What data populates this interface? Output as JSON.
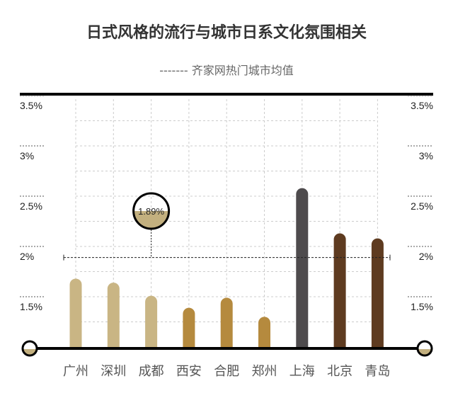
{
  "chart_data": {
    "type": "bar",
    "title": "日式风格的流行与城市日系文化氛围相关",
    "legend": "------- 齐家网热门城市均值",
    "categories": [
      "广州",
      "深圳",
      "成都",
      "西安",
      "合肥",
      "郑州",
      "上海",
      "北京",
      "青岛"
    ],
    "values": [
      1.68,
      1.64,
      1.51,
      1.39,
      1.49,
      1.3,
      2.58,
      2.13,
      2.08
    ],
    "colors": [
      "#c9b584",
      "#c9b584",
      "#c9b584",
      "#b58a3e",
      "#b58a3e",
      "#b58a3e",
      "#4e4b4d",
      "#5e3b20",
      "#5e3b20"
    ],
    "average": {
      "value": 1.89,
      "label": "1.89%"
    },
    "ylim": [
      1.0,
      3.5
    ],
    "yticks": [
      {
        "v": 3.5,
        "label": "3.5%"
      },
      {
        "v": 3.0,
        "label": "3%"
      },
      {
        "v": 2.5,
        "label": "2.5%"
      },
      {
        "v": 2.0,
        "label": "2%"
      },
      {
        "v": 1.5,
        "label": "1.5%"
      }
    ],
    "grid": true
  }
}
